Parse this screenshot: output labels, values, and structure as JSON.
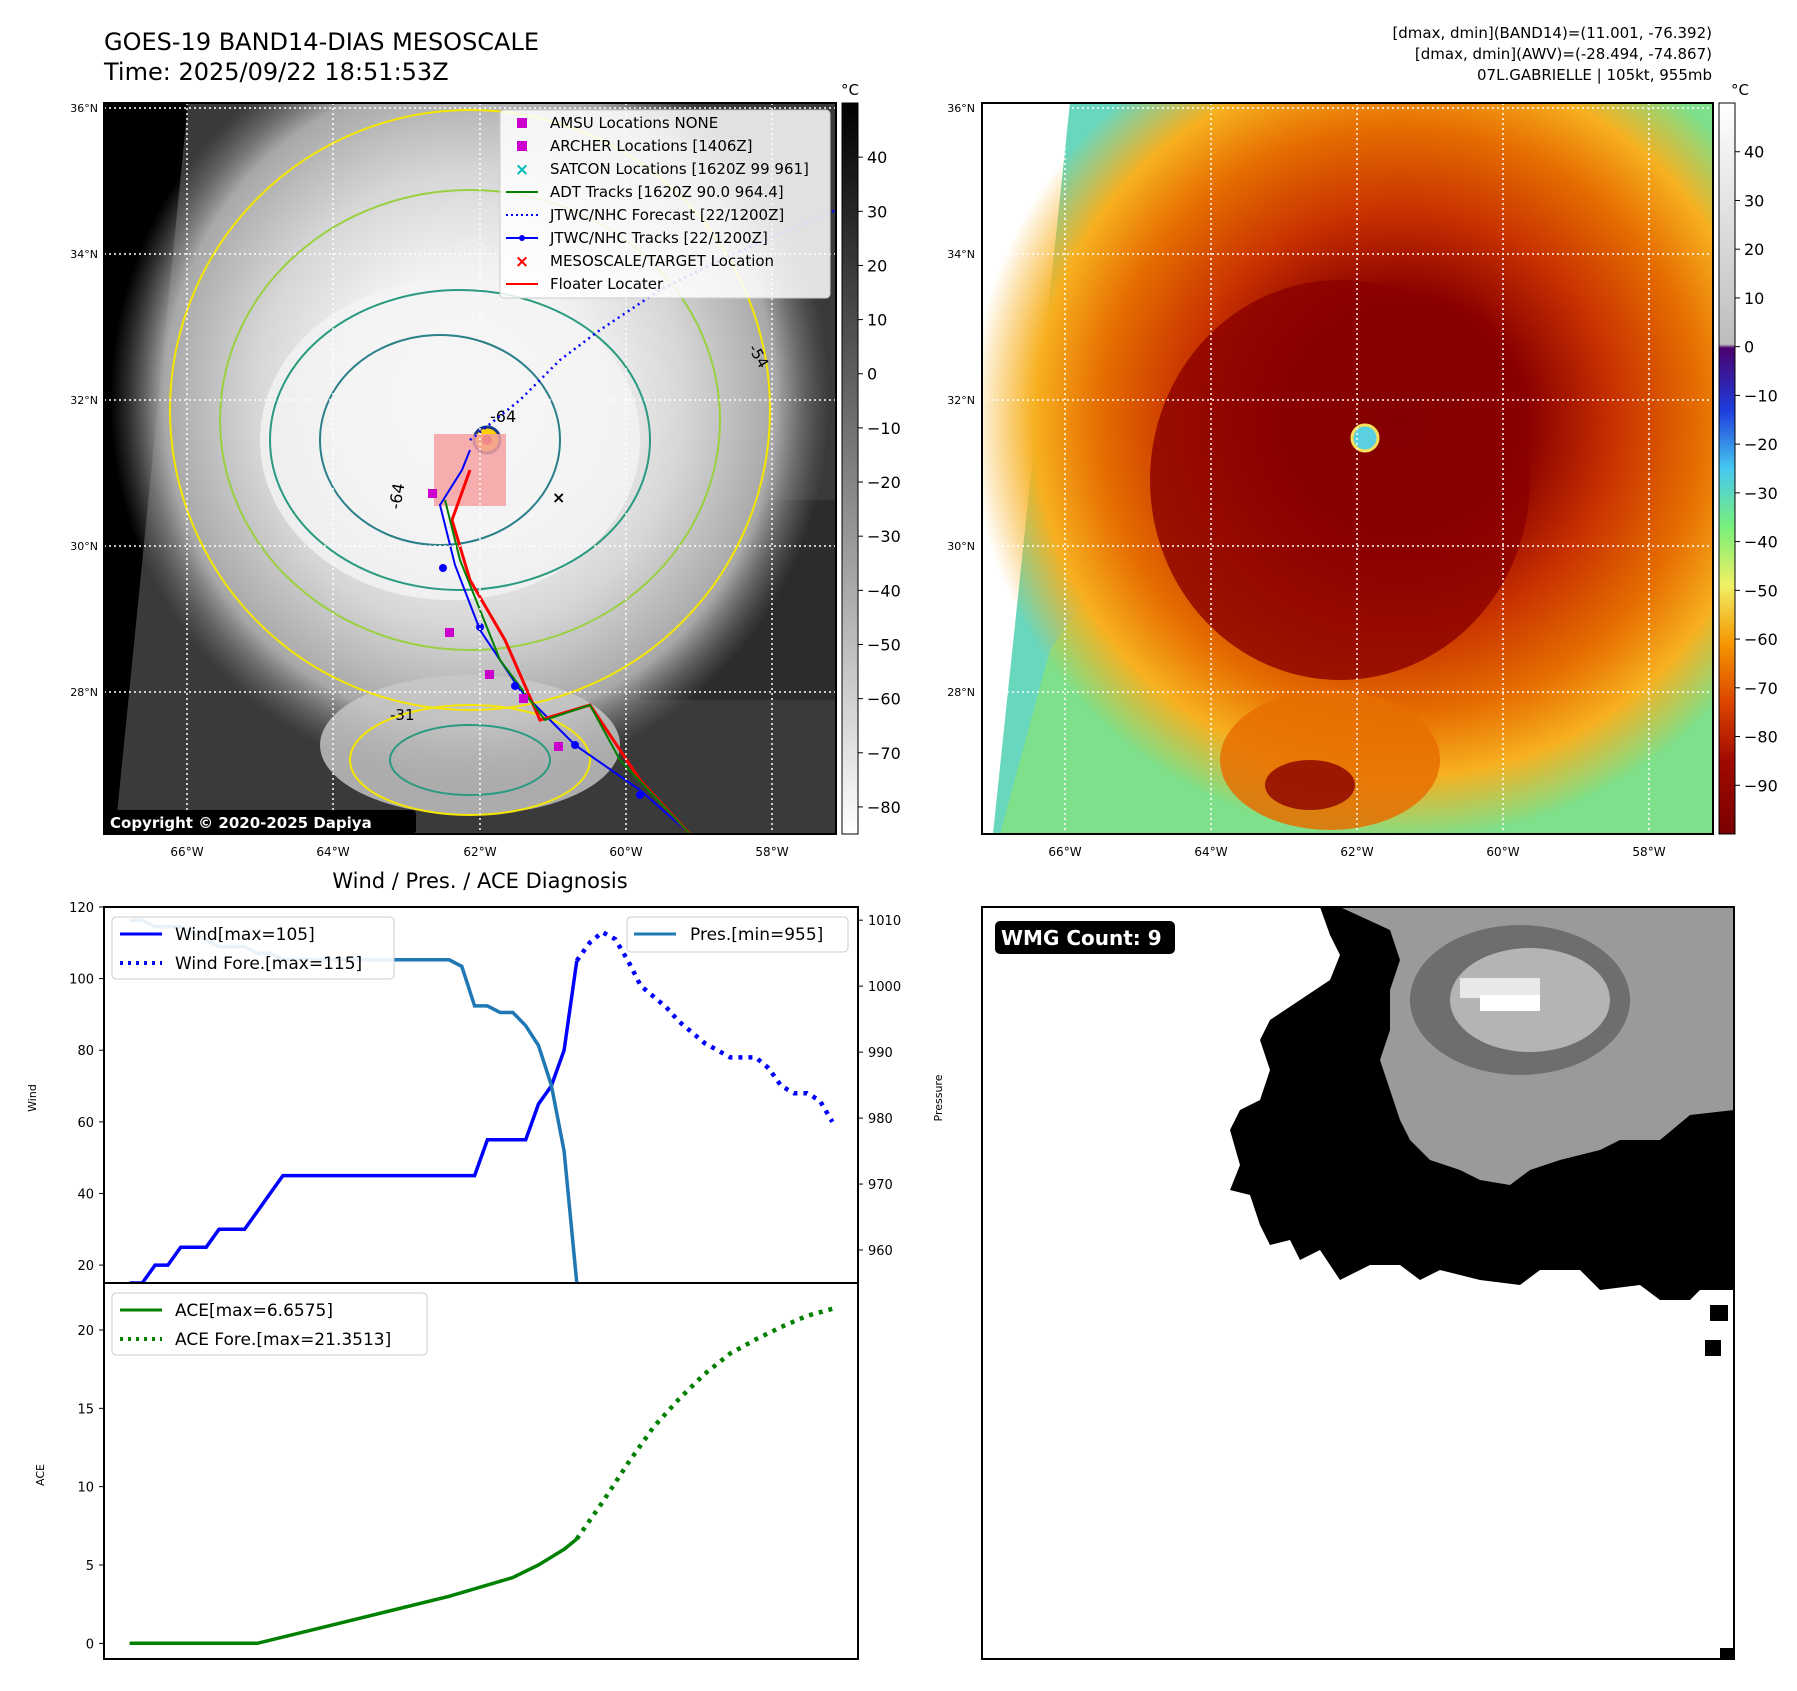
{
  "header": {
    "title_line1": "GOES-19 BAND14-DIAS MESOSCALE",
    "title_line2": "Time: 2025/09/22 18:51:53Z",
    "stats_line1": "[dmax, dmin](BAND14)=(11.001, -76.392)",
    "stats_line2": "[dmax, dmin](AWV)=(-28.494, -74.867)",
    "stats_line3": "07L.GABRIELLE | 105kt, 955mb"
  },
  "map": {
    "lat_labels": [
      "36°N",
      "34°N",
      "32°N",
      "30°N",
      "28°N"
    ],
    "lon_labels": [
      "66°W",
      "64°W",
      "62°W",
      "60°W",
      "58°W"
    ],
    "copyright": "Copyright © 2020-2025 Dapiya",
    "contour_labels": [
      "-64",
      "-64",
      "-54",
      "-31"
    ],
    "legend": [
      {
        "label": "AMSU Locations NONE",
        "color": "#cc00cc",
        "kind": "square"
      },
      {
        "label": "ARCHER Locations [1406Z]",
        "color": "#cc00cc",
        "kind": "square"
      },
      {
        "label": "SATCON Locations [1620Z 99 961]",
        "color": "#00bbbb",
        "kind": "x"
      },
      {
        "label": "ADT Tracks [1620Z 90.0 964.4]",
        "color": "#008000",
        "kind": "line"
      },
      {
        "label": "JTWC/NHC Forecast [22/1200Z]",
        "color": "#0000ff",
        "kind": "dotted"
      },
      {
        "label": "JTWC/NHC Tracks [22/1200Z]",
        "color": "#0000ff",
        "kind": "dotline"
      },
      {
        "label": "MESOSCALE/TARGET Location",
        "color": "#ff0000",
        "kind": "x"
      },
      {
        "label": "Floater Locater",
        "color": "#ff0000",
        "kind": "line"
      }
    ]
  },
  "colorbar_gray": {
    "unit": "°C",
    "ticks": [
      "40",
      "30",
      "20",
      "10",
      "0",
      "−10",
      "−20",
      "−30",
      "−40",
      "−50",
      "−60",
      "−70",
      "−80"
    ]
  },
  "colorbar_enh": {
    "unit": "°C",
    "ticks": [
      "40",
      "30",
      "20",
      "10",
      "0",
      "−10",
      "−20",
      "−30",
      "−40",
      "−50",
      "−60",
      "−70",
      "−80",
      "−90"
    ]
  },
  "chart_data": [
    {
      "type": "line",
      "title": "Wind / Pres. / ACE Diagnosis",
      "ylabel": "Wind",
      "ylabel_right": "Pressure",
      "ylim": [
        15,
        120
      ],
      "ylim_right": [
        955,
        1012
      ],
      "yticks": [
        "120",
        "100",
        "80",
        "60",
        "40",
        "20"
      ],
      "yticks_right": [
        "1010",
        "1000",
        "990",
        "980",
        "970",
        "960"
      ],
      "x": [
        0,
        1,
        2,
        3,
        4,
        5,
        6,
        7,
        8,
        9,
        10,
        11,
        12,
        13,
        14,
        15,
        16,
        17,
        18,
        19,
        20,
        21,
        22,
        23,
        24,
        25,
        26,
        27,
        28,
        29,
        30,
        31,
        32,
        33,
        34,
        35,
        36,
        37,
        38,
        39,
        40,
        41,
        42,
        43,
        44,
        45,
        46,
        47,
        48,
        49,
        50,
        51,
        52,
        53,
        54,
        55
      ],
      "series": [
        {
          "name": "Wind[max=105]",
          "color": "#0000ff",
          "style": "solid",
          "x": [
            0,
            1,
            2,
            3,
            4,
            5,
            6,
            7,
            8,
            9,
            10,
            11,
            12,
            13,
            14,
            15,
            16,
            17,
            18,
            19,
            20,
            21,
            22,
            23,
            24,
            25,
            26,
            27,
            28,
            29,
            30,
            31,
            32,
            33,
            34,
            35
          ],
          "values": [
            15,
            15,
            20,
            20,
            25,
            25,
            25,
            30,
            30,
            30,
            35,
            40,
            45,
            45,
            45,
            45,
            45,
            45,
            45,
            45,
            45,
            45,
            45,
            45,
            45,
            45,
            45,
            45,
            55,
            55,
            55,
            55,
            65,
            70,
            80,
            105
          ]
        },
        {
          "name": "Wind Fore.[max=115]",
          "color": "#0000ff",
          "style": "dotted",
          "x": [
            35,
            36,
            37,
            38,
            39,
            40,
            41,
            42,
            43,
            44,
            45,
            46,
            47,
            48,
            49,
            50,
            51,
            52,
            53,
            54,
            55
          ],
          "values": [
            105,
            110,
            113,
            111,
            105,
            98,
            95,
            92,
            88,
            85,
            82,
            80,
            78,
            78,
            78,
            75,
            70,
            68,
            68,
            66,
            60
          ]
        },
        {
          "name": "Pres.[min=955]",
          "color": "#1f77b4",
          "style": "solid",
          "axis": "right",
          "x": [
            0,
            1,
            2,
            3,
            4,
            5,
            6,
            7,
            8,
            9,
            10,
            11,
            12,
            13,
            14,
            15,
            16,
            17,
            18,
            19,
            20,
            21,
            22,
            23,
            24,
            25,
            26,
            27,
            28,
            29,
            30,
            31,
            32,
            33,
            34,
            35
          ],
          "values": [
            1010,
            1010,
            1009,
            1009,
            1009,
            1008,
            1007,
            1006,
            1006,
            1006,
            1005,
            1005,
            1004,
            1004,
            1004,
            1004,
            1004,
            1004,
            1004,
            1004,
            1004,
            1004,
            1004,
            1004,
            1004,
            1004,
            1003,
            997,
            997,
            996,
            996,
            994,
            991,
            985,
            975,
            955
          ]
        }
      ]
    },
    {
      "type": "line",
      "title": "",
      "ylabel": "ACE",
      "ylim": [
        -1,
        23
      ],
      "yticks": [
        "20",
        "15",
        "10",
        "5",
        "0"
      ],
      "x": [
        0,
        1,
        2,
        3,
        4,
        5,
        6,
        7,
        8,
        9,
        10,
        11,
        12,
        13,
        14,
        15,
        16,
        17,
        18,
        19,
        20,
        21,
        22,
        23,
        24,
        25,
        26,
        27,
        28,
        29,
        30,
        31,
        32,
        33,
        34,
        35,
        36,
        37,
        38,
        39,
        40,
        41,
        42,
        43,
        44,
        45,
        46,
        47,
        48,
        49,
        50,
        51,
        52,
        53,
        54,
        55
      ],
      "series": [
        {
          "name": "ACE[max=6.6575]",
          "color": "#008000",
          "style": "solid",
          "x": [
            0,
            5,
            10,
            15,
            20,
            25,
            30,
            32,
            34,
            35
          ],
          "values": [
            0,
            0,
            0,
            1.0,
            2.0,
            3.0,
            4.2,
            5.0,
            6.0,
            6.66
          ]
        },
        {
          "name": "ACE Fore.[max=21.3513]",
          "color": "#008000",
          "style": "dotted",
          "x": [
            35,
            37,
            39,
            41,
            43,
            45,
            47,
            49,
            51,
            53,
            55
          ],
          "values": [
            6.66,
            9.0,
            11.5,
            13.8,
            15.6,
            17.2,
            18.5,
            19.4,
            20.2,
            20.9,
            21.35
          ]
        }
      ]
    }
  ],
  "wmg": {
    "count_label": "WMG Count: 9"
  }
}
